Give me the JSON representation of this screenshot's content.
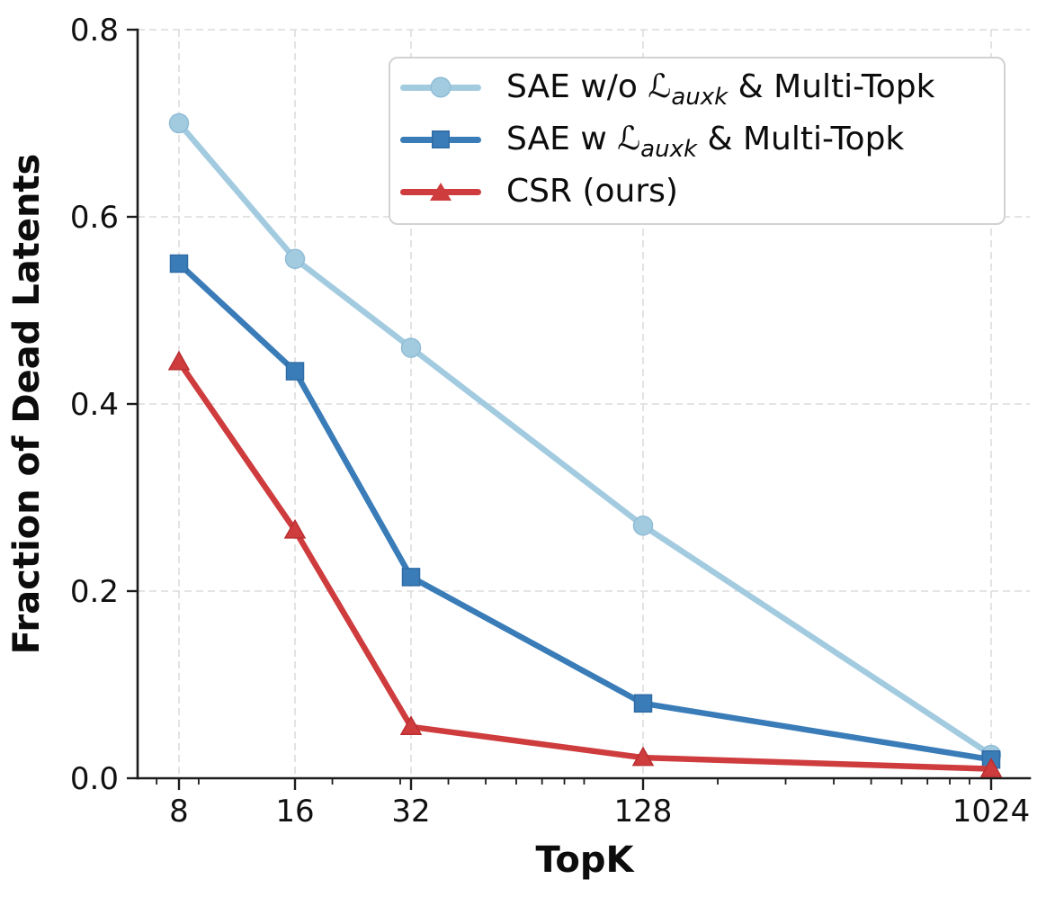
{
  "figure": {
    "background": "#ffffff"
  },
  "legend": {
    "entries": [
      {
        "prefix": "SAE w/o ",
        "math_symbol": "ℒ",
        "math_sub": "auxk",
        "suffix": " & Multi-Topk",
        "marker": "circle",
        "color": "#a3cbe0",
        "edge": "#8fbcd6"
      },
      {
        "prefix": "SAE w ",
        "math_symbol": "ℒ",
        "math_sub": "auxk",
        "suffix": " & Multi-Topk",
        "marker": "square",
        "color": "#3a7cb8",
        "edge": "#2f6ba5"
      },
      {
        "prefix": "CSR (ours)",
        "math_symbol": "",
        "math_sub": "",
        "suffix": "",
        "marker": "triangle",
        "color": "#cf3c3e",
        "edge": "#ba2f31"
      }
    ]
  },
  "chart_data": {
    "type": "line",
    "title": "",
    "xlabel": "TopK",
    "ylabel": "Fraction of Dead Latents",
    "x_scale": "log",
    "x": [
      8,
      16,
      32,
      128,
      1024
    ],
    "x_tick_labels": [
      "8",
      "16",
      "32",
      "128",
      "1024"
    ],
    "x_minor_ticks": [
      7,
      9,
      20,
      30,
      40,
      50,
      60,
      70,
      80,
      90,
      200,
      300,
      400,
      500,
      600,
      700,
      800,
      900
    ],
    "xlim": [
      6.25,
      1290
    ],
    "ylim": [
      0.0,
      0.8
    ],
    "y_ticks": [
      0.0,
      0.2,
      0.4,
      0.6,
      0.8
    ],
    "grid": "dashed, major ticks, both axes",
    "legend_position": "upper right",
    "series": [
      {
        "name": "SAE w/o L_auxk & Multi-Topk",
        "slug": "sae-wo-auxk",
        "marker": "circle",
        "color": "#a3cbe0",
        "edge": "#8fbcd6",
        "values": [
          0.7,
          0.555,
          0.46,
          0.27,
          0.025
        ]
      },
      {
        "name": "SAE w L_auxk & Multi-Topk",
        "slug": "sae-w-auxk",
        "marker": "square",
        "color": "#3a7cb8",
        "edge": "#2f6ba5",
        "values": [
          0.55,
          0.435,
          0.215,
          0.08,
          0.02
        ]
      },
      {
        "name": "CSR (ours)",
        "slug": "csr-ours",
        "marker": "triangle",
        "color": "#cf3c3e",
        "edge": "#ba2f31",
        "values": [
          0.445,
          0.265,
          0.055,
          0.022,
          0.01
        ]
      }
    ],
    "colors": {
      "spine": "#1c1c1c",
      "grid": "#dcdcdc",
      "tick_label": "#101010"
    }
  }
}
